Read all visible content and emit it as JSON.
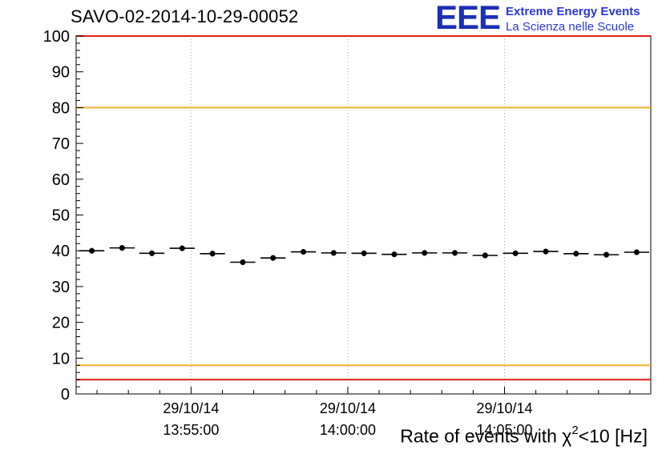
{
  "header": {
    "title": "SAVO-02-2014-10-29-00052",
    "logo": {
      "text": "EEE",
      "line1": "Extreme Energy Events",
      "line2": "La Scienza nelle Scuole",
      "logo_color": "#1b30b5",
      "subtitle_color": "#2b37d8"
    }
  },
  "chart_data": {
    "type": "scatter",
    "title": "Rate of events with χ2<10 [Hz]",
    "title_parts": {
      "prefix": "Rate of events with χ",
      "sup": "2",
      "suffix": "<10 [Hz]"
    },
    "ylabel": "",
    "xlabel": "",
    "ylim": [
      0,
      100
    ],
    "y_ticks": [
      0,
      10,
      20,
      30,
      40,
      50,
      60,
      70,
      80,
      90,
      100
    ],
    "y_minor_step": 2,
    "x_axis": {
      "reference": "seconds relative to 13:55:00 on 29/10/14",
      "range_seconds": [
        -220,
        880
      ],
      "major_ticks": [
        {
          "seconds": 0,
          "date": "29/10/14",
          "time": "13:55:00"
        },
        {
          "seconds": 300,
          "date": "29/10/14",
          "time": "14:00:00"
        },
        {
          "seconds": 600,
          "date": "29/10/14",
          "time": "14:05:00"
        }
      ],
      "minor_tick_seconds": 60
    },
    "grid": {
      "vertical": true,
      "horizontal": false,
      "style": "dotted",
      "color": "#a8a8a8"
    },
    "thresholds": [
      {
        "value": 100,
        "color": "#e22015"
      },
      {
        "value": 80,
        "color": "#f0b02c"
      },
      {
        "value": 8,
        "color": "#f0b02c"
      },
      {
        "value": 4,
        "color": "#e22015"
      }
    ],
    "series": [
      {
        "name": "event-rate",
        "marker": "filled-circle",
        "color": "#000000",
        "x_error_seconds": 24,
        "points": [
          {
            "t": -190,
            "v": 40.0,
            "e": 0.8
          },
          {
            "t": -132,
            "v": 40.8,
            "e": 0.8
          },
          {
            "t": -75,
            "v": 39.3,
            "e": 0.8
          },
          {
            "t": -17,
            "v": 40.7,
            "e": 0.8
          },
          {
            "t": 41,
            "v": 39.2,
            "e": 0.8
          },
          {
            "t": 99,
            "v": 36.8,
            "e": 0.8
          },
          {
            "t": 157,
            "v": 38.0,
            "e": 0.8
          },
          {
            "t": 215,
            "v": 39.7,
            "e": 0.8
          },
          {
            "t": 273,
            "v": 39.4,
            "e": 0.8
          },
          {
            "t": 331,
            "v": 39.3,
            "e": 0.8
          },
          {
            "t": 389,
            "v": 39.0,
            "e": 0.8
          },
          {
            "t": 447,
            "v": 39.4,
            "e": 0.8
          },
          {
            "t": 505,
            "v": 39.4,
            "e": 0.8
          },
          {
            "t": 563,
            "v": 38.7,
            "e": 0.8
          },
          {
            "t": 621,
            "v": 39.3,
            "e": 0.8
          },
          {
            "t": 679,
            "v": 39.8,
            "e": 0.8
          },
          {
            "t": 737,
            "v": 39.2,
            "e": 0.8
          },
          {
            "t": 795,
            "v": 38.9,
            "e": 0.8
          },
          {
            "t": 853,
            "v": 39.6,
            "e": 0.8
          }
        ]
      }
    ]
  }
}
